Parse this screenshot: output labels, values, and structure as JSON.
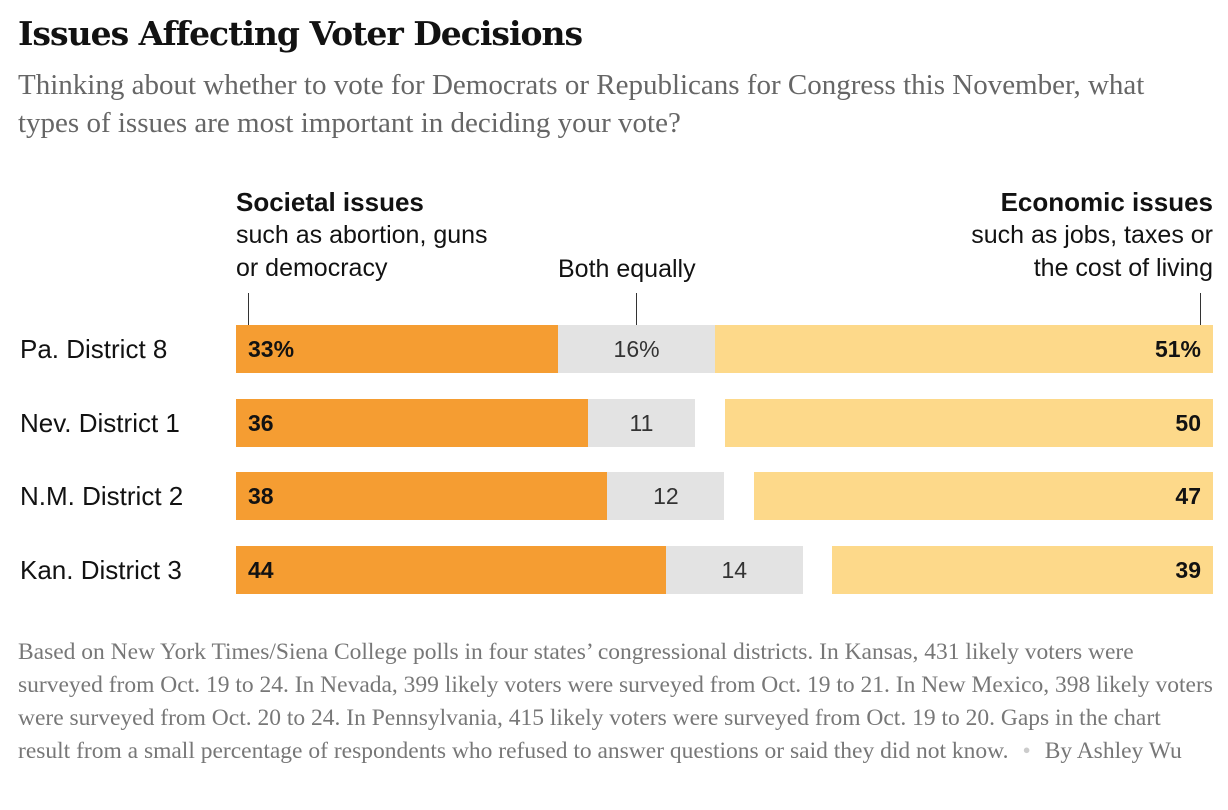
{
  "title": "Issues Affecting Voter Decisions",
  "subtitle": "Thinking about whether to vote for Democrats or Republicans for Congress this November, what types of issues are most important in deciding your vote?",
  "chart_data": {
    "type": "bar",
    "stacked": true,
    "orientation": "horizontal",
    "categories": [
      "Pa. District 8",
      "Nev. District 1",
      "N.M. District 2",
      "Kan. District 3"
    ],
    "series": [
      {
        "name": "Societal issues",
        "description": "such as abortion, guns or democracy",
        "values": [
          33,
          36,
          38,
          44
        ],
        "labels": [
          "33%",
          "36",
          "38",
          "44"
        ],
        "color": "#f59d32",
        "align": "left"
      },
      {
        "name": "Both equally",
        "values": [
          16,
          11,
          12,
          14
        ],
        "labels": [
          "16%",
          "11",
          "12",
          "14"
        ],
        "color": "#e3e3e3",
        "align": "left"
      },
      {
        "name": "Economic issues",
        "description": "such as jobs, taxes or the cost of living",
        "values": [
          51,
          50,
          47,
          39
        ],
        "labels": [
          "51%",
          "50",
          "47",
          "39"
        ],
        "color": "#fdd98a",
        "align": "right"
      }
    ],
    "xlim": [
      0,
      100
    ]
  },
  "note": "Based on New York Times/Siena College polls in four states’ congressional districts. In Kansas, 431 likely voters were surveyed from Oct. 19 to 24. In Nevada, 399 likely voters were surveyed from Oct. 19 to 21. In New Mexico, 398 likely voters were surveyed from Oct. 20 to 24. In Pennsylvania, 415 likely voters were surveyed from Oct. 19 to 20. Gaps in the chart result from a small percentage of respondents who refused to answer questions or said they did not know.",
  "byline": "By Ashley Wu"
}
